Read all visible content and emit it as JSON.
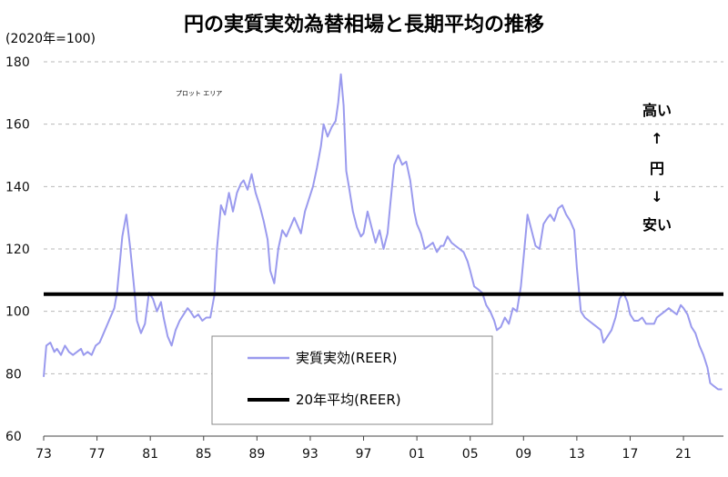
{
  "chart_data": {
    "type": "line",
    "title": "円の実質実効為替相場と長期平均の推移",
    "unit_label": "(2020年=100)",
    "plot_area_label": "プロット エリア",
    "annotations": {
      "high": "高い",
      "up_arrow": "↑",
      "yen": "円",
      "down_arrow": "↓",
      "low": "安い"
    },
    "ylim": [
      60,
      180
    ],
    "yticks": [
      60,
      80,
      100,
      120,
      140,
      160,
      180
    ],
    "ytick_labels": [
      "60",
      "80",
      "100",
      "120",
      "140",
      "160",
      "180"
    ],
    "xlim": [
      1973,
      2024
    ],
    "xticks": [
      1973,
      1977,
      1981,
      1985,
      1989,
      1993,
      1997,
      2001,
      2005,
      2009,
      2013,
      2017,
      2021
    ],
    "xtick_labels": [
      "73",
      "77",
      "81",
      "85",
      "89",
      "93",
      "97",
      "01",
      "05",
      "09",
      "13",
      "17",
      "21"
    ],
    "grid": true,
    "legend_position": "bottom-center",
    "series": [
      {
        "name": "実質実効(REER)",
        "color": "#9a9aee",
        "x": [
          1973.0,
          1973.2,
          1973.5,
          1973.8,
          1974.0,
          1974.3,
          1974.6,
          1974.9,
          1975.2,
          1975.5,
          1975.8,
          1976.0,
          1976.3,
          1976.6,
          1976.9,
          1977.2,
          1977.5,
          1977.8,
          1978.0,
          1978.3,
          1978.5,
          1978.7,
          1978.9,
          1979.2,
          1979.5,
          1979.8,
          1980.0,
          1980.3,
          1980.6,
          1980.9,
          1981.2,
          1981.5,
          1981.8,
          1982.0,
          1982.3,
          1982.6,
          1982.9,
          1983.2,
          1983.5,
          1983.8,
          1984.0,
          1984.3,
          1984.6,
          1984.9,
          1985.2,
          1985.5,
          1985.8,
          1986.0,
          1986.3,
          1986.6,
          1986.9,
          1987.2,
          1987.5,
          1987.8,
          1988.0,
          1988.3,
          1988.6,
          1988.9,
          1989.2,
          1989.5,
          1989.8,
          1990.0,
          1990.3,
          1990.6,
          1990.9,
          1991.2,
          1991.5,
          1991.8,
          1992.0,
          1992.3,
          1992.6,
          1992.9,
          1993.2,
          1993.5,
          1993.8,
          1994.0,
          1994.3,
          1994.6,
          1994.9,
          1995.1,
          1995.3,
          1995.5,
          1995.7,
          1995.9,
          1996.2,
          1996.5,
          1996.8,
          1997.0,
          1997.3,
          1997.6,
          1997.9,
          1998.2,
          1998.5,
          1998.8,
          1999.0,
          1999.3,
          1999.6,
          1999.9,
          2000.2,
          2000.5,
          2000.8,
          2001.0,
          2001.3,
          2001.6,
          2001.9,
          2002.2,
          2002.5,
          2002.8,
          2003.0,
          2003.3,
          2003.6,
          2003.9,
          2004.2,
          2004.5,
          2004.8,
          2005.0,
          2005.3,
          2005.6,
          2005.9,
          2006.2,
          2006.5,
          2006.8,
          2007.0,
          2007.3,
          2007.6,
          2007.9,
          2008.2,
          2008.5,
          2008.8,
          2009.0,
          2009.3,
          2009.6,
          2009.9,
          2010.2,
          2010.5,
          2010.8,
          2011.0,
          2011.3,
          2011.6,
          2011.9,
          2012.2,
          2012.5,
          2012.8,
          2013.0,
          2013.3,
          2013.6,
          2013.9,
          2014.2,
          2014.5,
          2014.8,
          2015.0,
          2015.3,
          2015.6,
          2015.9,
          2016.2,
          2016.5,
          2016.8,
          2017.0,
          2017.3,
          2017.6,
          2017.9,
          2018.2,
          2018.5,
          2018.8,
          2019.0,
          2019.3,
          2019.6,
          2019.9,
          2020.2,
          2020.5,
          2020.8,
          2021.0,
          2021.3,
          2021.6,
          2021.9,
          2022.2,
          2022.5,
          2022.8,
          2023.0,
          2023.3,
          2023.6,
          2023.9
        ],
        "y": [
          79,
          89,
          90,
          87,
          88,
          86,
          89,
          87,
          86,
          87,
          88,
          86,
          87,
          86,
          89,
          90,
          93,
          96,
          98,
          101,
          106,
          115,
          124,
          131,
          120,
          107,
          97,
          93,
          96,
          106,
          104,
          100,
          103,
          98,
          92,
          89,
          94,
          97,
          99,
          101,
          100,
          98,
          99,
          97,
          98,
          98,
          105,
          120,
          134,
          131,
          138,
          132,
          138,
          141,
          142,
          139,
          144,
          138,
          134,
          129,
          123,
          113,
          109,
          120,
          126,
          124,
          127,
          130,
          128,
          125,
          132,
          136,
          140,
          146,
          153,
          160,
          156,
          159,
          161,
          167,
          176,
          166,
          145,
          140,
          132,
          127,
          124,
          125,
          132,
          127,
          122,
          126,
          120,
          125,
          134,
          147,
          150,
          147,
          148,
          142,
          132,
          128,
          125,
          120,
          121,
          122,
          119,
          121,
          121,
          124,
          122,
          121,
          120,
          119,
          116,
          113,
          108,
          107,
          106,
          102,
          100,
          97,
          94,
          95,
          98,
          96,
          101,
          100,
          108,
          117,
          131,
          126,
          121,
          120,
          128,
          130,
          131,
          129,
          133,
          134,
          131,
          129,
          126,
          114,
          100,
          98,
          97,
          96,
          95,
          94,
          90,
          92,
          94,
          98,
          104,
          106,
          103,
          99,
          97,
          97,
          98,
          96,
          96,
          96,
          98,
          99,
          100,
          101,
          100,
          99,
          102,
          101,
          99,
          95,
          93,
          89,
          86,
          82,
          77,
          76,
          75,
          75
        ]
      },
      {
        "name": "20年平均(REER)",
        "color": "#000000",
        "x": [
          1973,
          2024
        ],
        "y": [
          105.5,
          105.5
        ]
      }
    ]
  }
}
